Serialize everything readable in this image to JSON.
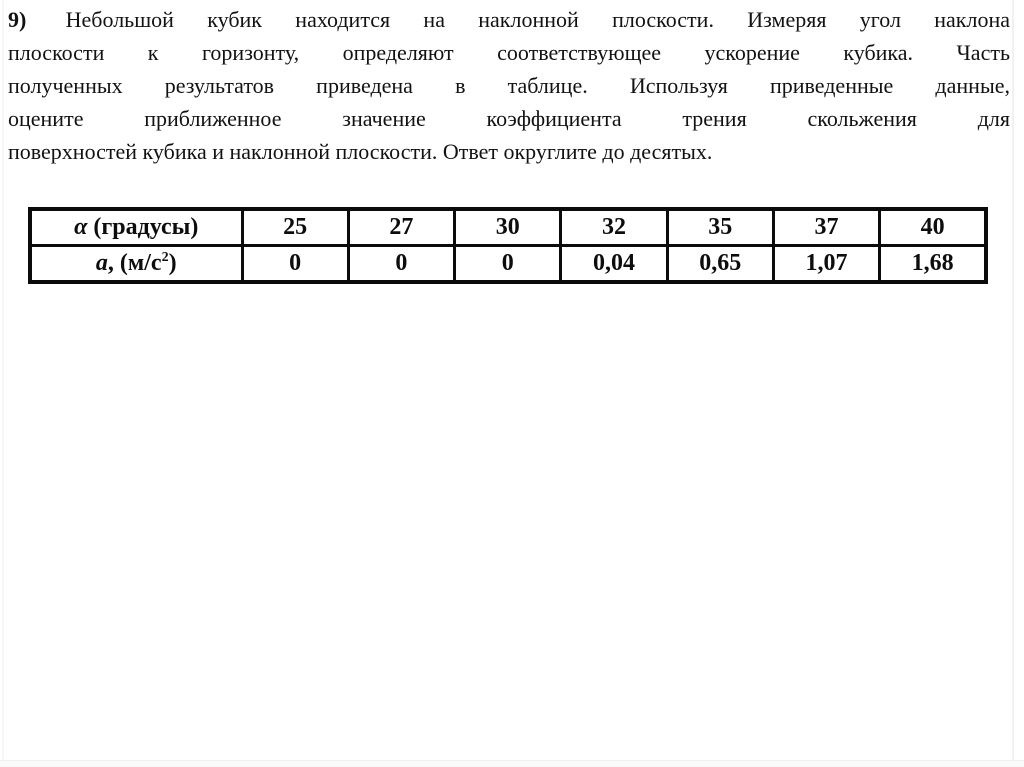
{
  "canvas": {
    "background": "#ffffff",
    "text_color": "#121212",
    "table_border_color": "#0b0b0b"
  },
  "problem": {
    "number": "9)",
    "lines": [
      " Небольшой кубик находится на наклонной плоскости. Измеряя угол наклона",
      "плоскости к горизонту, определяют соответствующее ускорение кубика. Часть",
      "полученных результатов приведена в таблице. Используя приведенные данные,",
      "оцените приближенное значение коэффициента трения скольжения для",
      "поверхностей кубика и наклонной плоскости. Ответ округлите до десятых."
    ]
  },
  "table": {
    "angle_row": {
      "symbol": "α",
      "label": " (градусы)"
    },
    "accel_row": {
      "symbol": "a",
      "label_pre": ", (м/с",
      "sup": "2",
      "label_post": ")"
    },
    "angles_deg": [
      "25",
      "27",
      "30",
      "32",
      "35",
      "37",
      "40"
    ],
    "accelerations": [
      "0",
      "0",
      "0",
      "0,04",
      "0,65",
      "1,07",
      "1,68"
    ]
  }
}
